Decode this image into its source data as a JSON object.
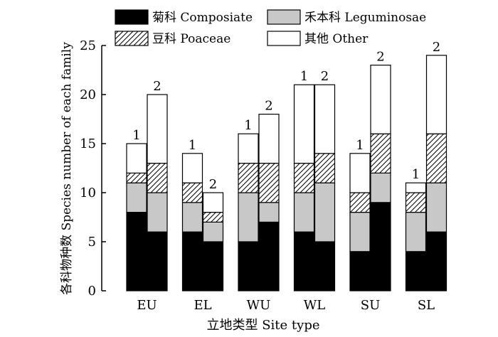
{
  "chart_data": {
    "type": "bar",
    "stacked": true,
    "title": "",
    "xlabel": "立地类型 Site type",
    "ylabel": "各科物种数 Species number of each family",
    "ylim": [
      0,
      25
    ],
    "yticks": [
      0,
      5,
      10,
      15,
      20,
      25
    ],
    "groups": [
      "EU",
      "EL",
      "WU",
      "WL",
      "SU",
      "SL"
    ],
    "bar_labels": [
      "1",
      "2"
    ],
    "legend": {
      "placement": "top",
      "entries": [
        {
          "label": "菊科 Composiate",
          "fill": "#000000",
          "hatch": false
        },
        {
          "label": "禾本科 Leguminosae",
          "fill": "#c8c8c8",
          "hatch": false
        },
        {
          "label": "豆科 Poaceae",
          "fill": "#ffffff",
          "hatch": true
        },
        {
          "label": "其他 Other",
          "fill": "#ffffff",
          "hatch": false
        }
      ]
    },
    "series": [
      {
        "name": "菊科 Composiate",
        "values": [
          [
            8,
            6
          ],
          [
            6,
            5
          ],
          [
            5,
            7
          ],
          [
            6,
            5
          ],
          [
            4,
            9
          ],
          [
            4,
            6
          ]
        ]
      },
      {
        "name": "禾本科 Leguminosae",
        "values": [
          [
            3,
            4
          ],
          [
            3,
            2
          ],
          [
            5,
            2
          ],
          [
            4,
            6
          ],
          [
            4,
            3
          ],
          [
            4,
            5
          ]
        ]
      },
      {
        "name": "豆科 Poaceae",
        "values": [
          [
            1,
            3
          ],
          [
            2,
            1
          ],
          [
            3,
            4
          ],
          [
            3,
            3
          ],
          [
            2,
            4
          ],
          [
            2,
            5
          ]
        ]
      },
      {
        "name": "其他 Other",
        "values": [
          [
            3,
            7
          ],
          [
            3,
            2
          ],
          [
            3,
            5
          ],
          [
            8,
            7
          ],
          [
            4,
            7
          ],
          [
            1,
            8
          ]
        ]
      }
    ]
  }
}
